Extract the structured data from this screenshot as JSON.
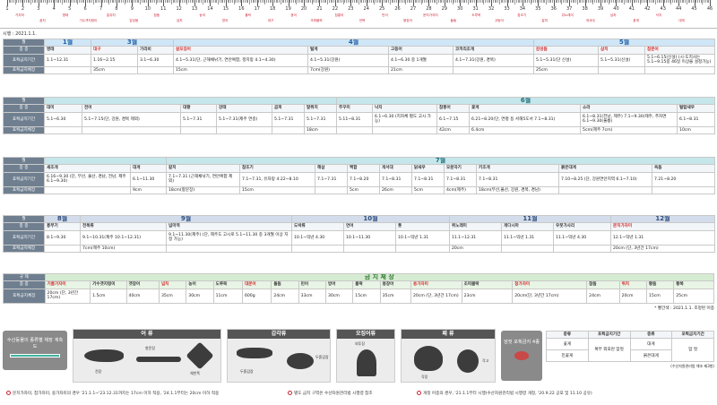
{
  "ruler": {
    "numbers": [
      "1",
      "2",
      "3",
      "4",
      "5",
      "6",
      "7",
      "8",
      "9",
      "10",
      "11",
      "12",
      "13",
      "14",
      "15",
      "16",
      "17",
      "18",
      "19",
      "20",
      "21",
      "22",
      "23",
      "24",
      "25",
      "26",
      "27",
      "28",
      "29",
      "30",
      "31",
      "32",
      "33",
      "34",
      "35",
      "36",
      "37",
      "38",
      "39",
      "40",
      "41",
      "42",
      "43",
      "44",
      "45",
      "46"
    ],
    "labels": [
      "가자미",
      "꼼치",
      "명태",
      "기수갯지렁이",
      "말쥐치",
      "감성돔",
      "참돔",
      "넙치",
      "농어",
      "방어",
      "볼락",
      "대구",
      "광어",
      "조피볼락",
      "참홍어",
      "전복",
      "민어",
      "붕장어",
      "문치가자미",
      "돌돔",
      "도루묵",
      "고등어",
      "참조기",
      "갈치",
      "쥐노래미",
      "개서대",
      "삼치",
      "꽃게",
      "낙지",
      "대게"
    ]
  },
  "date_note": "시행 : 2021.1.1.",
  "labels": {
    "row_month": "월",
    "row_species": "종   종",
    "row_period": "포획금지기간",
    "row_length": "포획금지체장"
  },
  "section1": {
    "months": [
      "1월",
      "3월",
      "4월",
      "5월"
    ],
    "species": [
      "명태",
      "대구",
      "가리비",
      "살오징어",
      "털게",
      "고등어",
      "코끼리조개",
      "감성돔",
      "삼치",
      "참문어"
    ],
    "period": [
      "1.1~12.31",
      "1.16~2.15",
      "3.1~6.30",
      "4.1~5.31(단, 근해채낚기, 연안복합, 정치망 4.1~4.30)",
      "4.1~5.31(강원)",
      "4.1~6.30 중 1개월",
      "4.1~7.31(강원, 경북)",
      "5.1~5.31(단 신설)",
      "5.1~5.31(신설)",
      "5.1~6.15(신설)"
    ],
    "length": [
      "",
      "35cm",
      "",
      "15cm",
      "7cm(강원)",
      "21cm",
      "",
      "25cm",
      "",
      ""
    ],
    "note": "(시·도지사는 5.1~9.15중 46일 이상을 설정가능)"
  },
  "section2": {
    "month": "6월",
    "species": [
      "대미",
      "전어",
      "대황",
      "강태",
      "곰피",
      "말쥐치",
      "주꾸미",
      "낙지",
      "참홍어",
      "꽃게",
      "소라",
      "털탑새우"
    ],
    "period": [
      "5.1~6.30",
      "5.1~7.15(단, 강원, 경북 제외)",
      "5.1~7.31",
      "5.1~7.31(제주 연중)",
      "5.1~7.31",
      "5.1~7.31",
      "5.11~8.31",
      "6.1~6.30 (지자체 별도 고시 가능)",
      "6.1~7.15",
      "6.21~8.20(단, 연평 등 서해5도서 7.1~8.31)",
      "6.1~8.31(전남, 제주) 7.1~9.30(제주, 추자면 6.1~9.30(울릉)",
      "6.1~8.31"
    ],
    "length": [
      "",
      "",
      "",
      "",
      "",
      "18cm",
      "",
      "",
      "42cm",
      "6.4cm",
      "5cm(제주 7cm)",
      "10cm"
    ]
  },
  "section3": {
    "month": "7월",
    "species": [
      "새조개",
      "대게",
      "갈치",
      "참조기",
      "해삼",
      "백합",
      "개서대",
      "닭새우",
      "오분자기",
      "키조개",
      "붉은대게",
      "옥돔"
    ],
    "period": [
      "6.16~9.30 (단, 부산, 울산, 경남, 전남, 제주 6.1~9.30)",
      "6.1~11.30",
      "7.1~7.31 (근해채낚기, 연안복합 제외)",
      "7.1~7.31, 유자망 4.22~8.10",
      "7.1~7.31",
      "7.1~8.20",
      "7.1~8.31",
      "7.1~8.31",
      "7.1~8.31",
      "7.1~8.31",
      "7.10~8.25 (단, 강원연안지역 6.1~7.10)",
      "7.21~8.20"
    ],
    "length": [
      "",
      "9cm",
      "18cm(항문장)",
      "15cm",
      "",
      "5cm",
      "26cm",
      "5cm",
      "4cm(제주)",
      "18cm(부산,울산, 강원, 경북, 경남)",
      "",
      ""
    ]
  },
  "section4": {
    "months": [
      "8월",
      "9월",
      "10월",
      "11월",
      "12월"
    ],
    "species": [
      "흥부기",
      "전복류",
      "넙미역",
      "도박류",
      "연어",
      "톳",
      "쥐노래미",
      "개다시마",
      "우뭇가사리",
      "문치가자미"
    ],
    "period": [
      "8.1~9.30",
      "9.1~10.31(제주 10.1~12.31)",
      "9.1~11.30(제주) (단, 제주도 고시로 5.1~11.30 중 3개월 이상 지정 가능)",
      "10.1~익년 4.30",
      "10.1~11.30",
      "10.1~익년 1.31",
      "11.1~12.31",
      "11.1~익년 1.31",
      "11.1~익년 4.30",
      "12.1~익년 1.31"
    ],
    "length": [
      "",
      "7cm(제주 10cm)",
      "",
      "",
      "",
      "",
      "20cm",
      "",
      "",
      "20cm (단, 3년간 17cm)"
    ]
  },
  "section5": {
    "title": "금 지 체 장",
    "row_label": "규   제",
    "species": [
      "기름가자미",
      "기수갯지렁이",
      "갯장어",
      "넙치",
      "농어",
      "도루묵",
      "대문어",
      "돌돔",
      "민어",
      "방어",
      "볼락",
      "붕장어",
      "용가자미",
      "조피볼락",
      "참가자미",
      "참돔",
      "쥐치",
      "황돔",
      "황복"
    ],
    "length": [
      "20cm (단, 3년간 17cm)",
      "1.5cm",
      "40cm",
      "35cm",
      "30cm",
      "11cm",
      "600g",
      "24cm",
      "33cm",
      "30cm",
      "15cm",
      "35cm",
      "20cm (단, 3년간 17cm)",
      "23cm",
      "20cm(단, 3년간 17cm)",
      "24cm",
      "20cm",
      "15cm",
      "25cm"
    ],
    "note": "* 빨간색 : 2021.1.1. 조정된 어종"
  },
  "bottom": {
    "measure_title": "수산동물의 종류별 체장 계측도",
    "categories": [
      "어 류",
      "갑각류",
      "오징어류",
      "패 류"
    ],
    "fish_labels": [
      "전장",
      "항문장",
      "체반폭"
    ],
    "crab_labels": [
      "두흉갑장",
      "두흉갑장"
    ],
    "squid_labels": [
      "외투장"
    ],
    "shell_labels": [
      "각장",
      "각고"
    ],
    "female_crab": "암컷 포획금지 4종",
    "female_table": {
      "headers": [
        "종류",
        "포획금지기간",
        "종류",
        "포획금지기간"
      ],
      "rows": [
        [
          "꽃게",
          "",
          "대게",
          ""
        ],
        [
          "민꽃게",
          "복부 외포란 암컷",
          "붉은대게",
          "암 컷"
        ]
      ],
      "source": "(수산자원관리법 해조 제3항)"
    }
  },
  "footer": {
    "items": [
      "문치가자미, 참가자미, 용가자미의 경우 '21.1.1~'23.12.31까지는 17cm 이하 적용, '24.1.1부터는 20cm 이하 적용",
      "별도 금지 구역은 수산자원관리법 시행령 참조",
      "개정 어종의 경우, '21.1.1부터 시행(수산자원관리법 시행령 개정, '20.9.22 공포 및 11.10 공유)"
    ]
  },
  "colors": {
    "accent_red": "#d02a2a",
    "rowhead": "#6f7f90"
  }
}
